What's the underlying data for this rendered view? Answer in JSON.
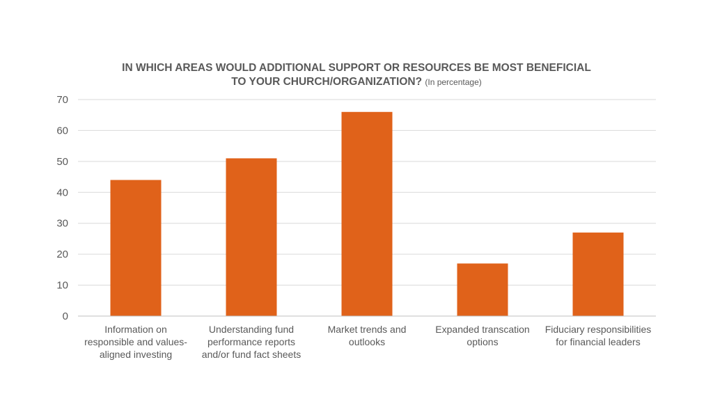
{
  "chart_data": {
    "type": "bar",
    "title_line1": "IN WHICH AREAS WOULD ADDITIONAL SUPPORT OR RESOURCES BE MOST BENEFICIAL",
    "title_line2": "TO YOUR CHURCH/ORGANIZATION?",
    "subtitle": "(In percentage)",
    "categories": [
      [
        "Information on",
        "responsible and values-",
        "aligned investing"
      ],
      [
        "Understanding fund",
        "performance reports",
        "and/or fund fact sheets"
      ],
      [
        "Market trends and",
        "outlooks"
      ],
      [
        "Expanded transcation",
        "options"
      ],
      [
        "Fiduciary responsibilities",
        "for financial leaders"
      ]
    ],
    "values": [
      44,
      51,
      66,
      17,
      27
    ],
    "ylim": [
      0,
      70
    ],
    "yticks": [
      0,
      10,
      20,
      30,
      40,
      50,
      60,
      70
    ],
    "grid": true,
    "colors": {
      "bar": "#E0621A",
      "grid": "#D9D9D9",
      "axis": "#BFBFBF",
      "text": "#595959"
    }
  }
}
